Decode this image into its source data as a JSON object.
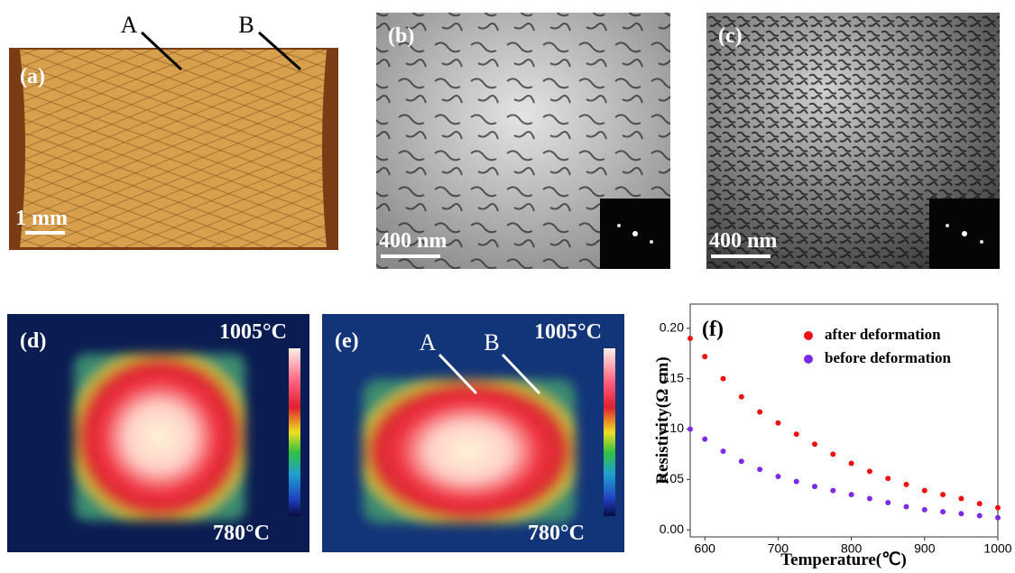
{
  "panels": {
    "a": {
      "label": "(a)",
      "marker_a": "A",
      "marker_b": "B",
      "scale": "1 mm"
    },
    "b": {
      "label": "(b)",
      "scale": "400 nm"
    },
    "c": {
      "label": "(c)",
      "scale": "400 nm"
    },
    "d": {
      "label": "(d)",
      "max": "1005°C",
      "min": "780°C"
    },
    "e": {
      "label": "(e)",
      "marker_a": "A",
      "marker_b": "B",
      "max": "1005°C",
      "min": "780°C"
    }
  },
  "chart_data": {
    "type": "scatter",
    "label": "(f)",
    "xlabel": "Temperature(℃)",
    "ylabel": "Resistivity(Ω cm)",
    "x": [
      580,
      600,
      625,
      650,
      675,
      700,
      725,
      750,
      775,
      800,
      825,
      850,
      875,
      900,
      925,
      950,
      975,
      1000
    ],
    "series": [
      {
        "name": "after deformation",
        "color": "#ee1111",
        "values": [
          0.19,
          0.172,
          0.15,
          0.132,
          0.117,
          0.106,
          0.095,
          0.085,
          0.075,
          0.066,
          0.058,
          0.051,
          0.045,
          0.039,
          0.035,
          0.031,
          0.026,
          0.022
        ]
      },
      {
        "name": "before deformation",
        "color": "#7d2ae8",
        "values": [
          0.1,
          0.09,
          0.078,
          0.068,
          0.06,
          0.053,
          0.048,
          0.043,
          0.039,
          0.035,
          0.031,
          0.027,
          0.023,
          0.02,
          0.018,
          0.016,
          0.014,
          0.012
        ]
      }
    ],
    "xlim": [
      580,
      1000
    ],
    "ylim": [
      -0.007,
      0.224
    ],
    "xticks": [
      600,
      700,
      800,
      900,
      1000
    ],
    "yticks": [
      {
        "value": 0,
        "label": "0.00"
      },
      {
        "value": 0.05,
        "label": "0.05"
      },
      {
        "value": 0.1,
        "label": "0.10"
      },
      {
        "value": 0.15,
        "label": "0.15"
      },
      {
        "value": 0.2,
        "label": "0.20"
      }
    ],
    "legend": "upper right"
  }
}
